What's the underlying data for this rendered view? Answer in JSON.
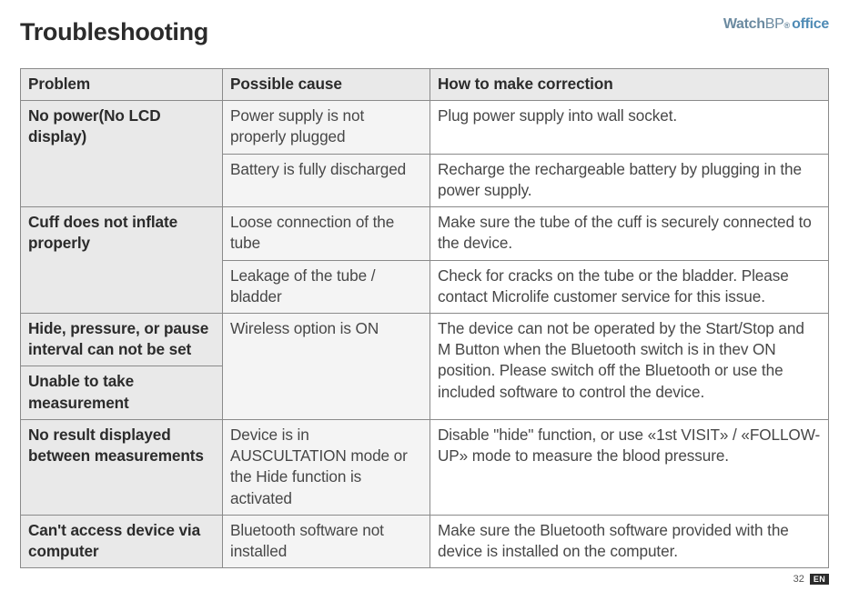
{
  "title": "Troubleshooting",
  "logo": {
    "watch": "Watch",
    "bp": "BP",
    "reg": "®",
    "office": "office"
  },
  "table": {
    "headers": {
      "problem": "Problem",
      "cause": "Possible cause",
      "correction": "How to make correction"
    },
    "rows": {
      "noPower": {
        "problem": "No power(No LCD display)",
        "r1": {
          "cause": "Power supply is not properly plugged",
          "correction": "Plug power supply into wall socket."
        },
        "r2": {
          "cause": "Battery is fully discharged",
          "correction": "Recharge the rechargeable battery by plugging in the power supply."
        }
      },
      "cuff": {
        "problem": "Cuff does not inflate properly",
        "r1": {
          "cause": "Loose connection of the tube",
          "correction": "Make sure the tube of the cuff is securely connected to the device."
        },
        "r2": {
          "cause": "Leakage of the tube / bladder",
          "correction": "Check for cracks on the tube or the bladder. Please contact Microlife customer service for this issue."
        }
      },
      "hide": {
        "problem": "Hide, pressure, or pause interval can not be set",
        "unable": "Unable to take measurement",
        "cause": "Wireless option is ON",
        "correction": "The device can not be operated by the Start/Stop and M Button when the Bluetooth switch is in thev ON position. Please switch off the Bluetooth or use the included software to control the device."
      },
      "noResult": {
        "problem": "No result displayed between measurements",
        "cause": "Device is in AUSCULTATION mode or the Hide function is activated",
        "correction": "Disable \"hide\" function, or use «1st VISIT» / «FOLLOW-UP» mode to measure the blood pressure."
      },
      "access": {
        "problem": "Can't access device via computer",
        "cause": "Bluetooth software not installed",
        "correction": "Make sure the Bluetooth software provided with the device is installed on the computer."
      }
    }
  },
  "footer": {
    "page": "32",
    "lang": "EN"
  },
  "colors": {
    "header_bg": "#e9e9e9",
    "cause_bg": "#f4f4f4",
    "correction_bg": "#ffffff",
    "border": "#8a8a8a",
    "text": "#474747",
    "logo": "#6b8aa0",
    "logo_office": "#4f8bb5"
  }
}
